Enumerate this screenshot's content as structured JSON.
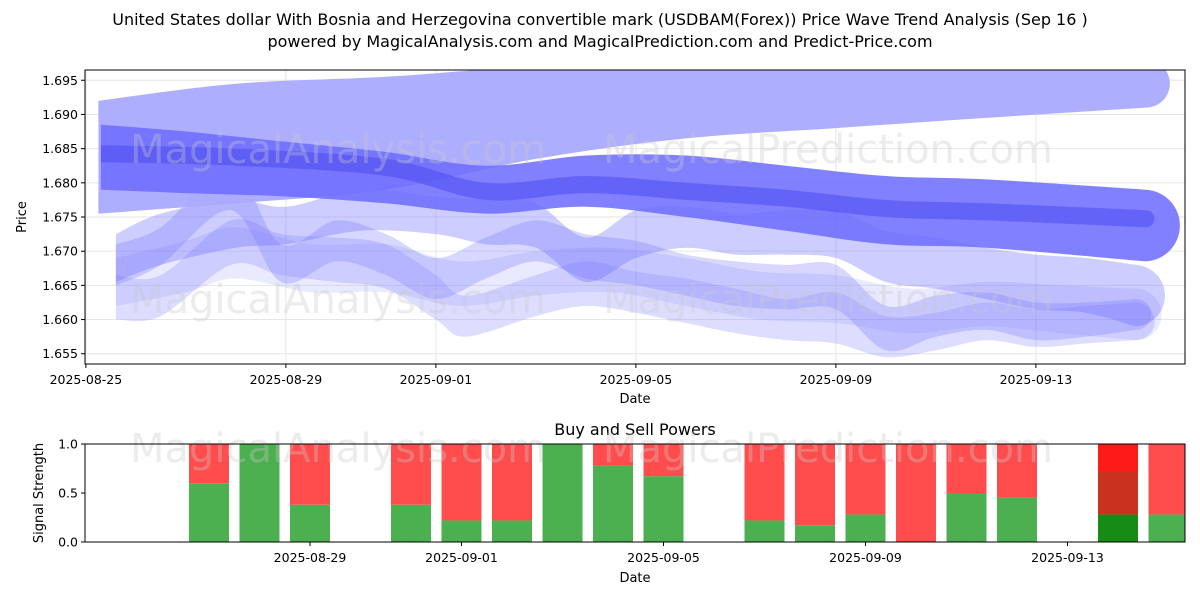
{
  "title_line1": "United States dollar With Bosnia and Herzegovina convertible mark (USDBAM(Forex)) Price Wave Trend Analysis (Sep 16 )",
  "title_line2": "powered by MagicalAnalysis.com and MagicalPrediction.com and Predict-Price.com",
  "watermarks": [
    "MagicalAnalysis.com",
    "MagicalPrediction.com"
  ],
  "chart_data": [
    {
      "type": "area",
      "title": "",
      "xlabel": "Date",
      "ylabel": "Price",
      "x_start": "2025-08-25",
      "x_end": "2025-09-16",
      "xlim_days": [
        0,
        21.4
      ],
      "ylim": [
        1.6535,
        1.6965
      ],
      "xticks": [
        {
          "day": 0,
          "label": "2025-08-25"
        },
        {
          "day": 4,
          "label": "2025-08-29"
        },
        {
          "day": 7,
          "label": "2025-09-01"
        },
        {
          "day": 11,
          "label": "2025-09-05"
        },
        {
          "day": 15,
          "label": "2025-09-09"
        },
        {
          "day": 19,
          "label": "2025-09-13"
        }
      ],
      "yticks": [
        1.655,
        1.66,
        1.665,
        1.67,
        1.675,
        1.68,
        1.685,
        1.69,
        1.695
      ],
      "grid": true,
      "series": [
        {
          "name": "upper wave",
          "color": "#aaaaff",
          "opacity": 0.95,
          "x": [
            0.25,
            3,
            6,
            9,
            12,
            15,
            18,
            21.2
          ],
          "upper": [
            1.692,
            1.6945,
            1.6955,
            1.697,
            1.697,
            1.6975,
            1.698,
            1.698
          ],
          "lower": [
            1.6755,
            1.677,
            1.679,
            1.6835,
            1.6865,
            1.688,
            1.6895,
            1.691
          ]
        },
        {
          "name": "main wave",
          "color": "#6b6bff",
          "opacity": 0.85,
          "x": [
            0.3,
            2,
            4,
            6,
            8,
            10,
            12,
            14,
            16,
            18,
            21.2
          ],
          "upper": [
            1.6885,
            1.6875,
            1.686,
            1.6845,
            1.6825,
            1.684,
            1.684,
            1.6825,
            1.681,
            1.6805,
            1.679
          ],
          "lower": [
            1.679,
            1.6785,
            1.678,
            1.677,
            1.6755,
            1.6765,
            1.675,
            1.673,
            1.671,
            1.6705,
            1.6685
          ]
        },
        {
          "name": "center line",
          "color": "#4b4bf0",
          "opacity": 0.55,
          "x": [
            0.3,
            3,
            6,
            8,
            10,
            12,
            14,
            16,
            18,
            21.2
          ],
          "upper": [
            1.6855,
            1.685,
            1.6835,
            1.68,
            1.681,
            1.68,
            1.679,
            1.6775,
            1.677,
            1.676
          ],
          "lower": [
            1.683,
            1.6825,
            1.681,
            1.6775,
            1.6785,
            1.6775,
            1.6765,
            1.675,
            1.6745,
            1.6735
          ]
        },
        {
          "name": "wave 3",
          "color": "#7070ff",
          "opacity": 0.35,
          "x": [
            0.6,
            1.5,
            3,
            4,
            5.5,
            7,
            8,
            9,
            10,
            11,
            12,
            13,
            14,
            15,
            16,
            17,
            18,
            19,
            20,
            21
          ],
          "upper": [
            1.6725,
            1.6755,
            1.6775,
            1.6765,
            1.679,
            1.678,
            1.6775,
            1.677,
            1.672,
            1.676,
            1.6765,
            1.6755,
            1.676,
            1.676,
            1.673,
            1.672,
            1.6705,
            1.6695,
            1.669,
            1.668
          ],
          "lower": [
            1.6655,
            1.668,
            1.6705,
            1.671,
            1.673,
            1.6725,
            1.671,
            1.6705,
            1.6655,
            1.669,
            1.6705,
            1.6695,
            1.6695,
            1.669,
            1.6655,
            1.6645,
            1.663,
            1.6615,
            1.661,
            1.659
          ]
        },
        {
          "name": "wave 4",
          "color": "#7a7aff",
          "opacity": 0.3,
          "x": [
            0.6,
            1.5,
            2.9,
            3.9,
            5,
            6,
            7,
            8,
            9,
            10,
            11,
            12,
            13,
            14,
            15,
            16,
            17,
            18,
            19,
            20,
            21
          ],
          "upper": [
            1.671,
            1.6735,
            1.682,
            1.671,
            1.6745,
            1.6725,
            1.669,
            1.672,
            1.6745,
            1.6725,
            1.6715,
            1.6695,
            1.6685,
            1.668,
            1.668,
            1.662,
            1.6635,
            1.664,
            1.6625,
            1.6625,
            1.663
          ],
          "lower": [
            1.665,
            1.668,
            1.676,
            1.6655,
            1.6685,
            1.6665,
            1.663,
            1.666,
            1.6685,
            1.666,
            1.665,
            1.6635,
            1.662,
            1.6615,
            1.6615,
            1.6555,
            1.6575,
            1.6585,
            1.657,
            1.6575,
            1.6585
          ]
        },
        {
          "name": "wave 5",
          "color": "#8585ff",
          "opacity": 0.28,
          "x": [
            0.6,
            1.5,
            2.9,
            3.9,
            5,
            6,
            7,
            7.6,
            9,
            10,
            11,
            12,
            13,
            14,
            15,
            16,
            17,
            18,
            19,
            20,
            21
          ],
          "upper": [
            1.6665,
            1.6665,
            1.6745,
            1.6725,
            1.672,
            1.671,
            1.6665,
            1.6635,
            1.6665,
            1.6685,
            1.667,
            1.666,
            1.6645,
            1.663,
            1.664,
            1.6605,
            1.661,
            1.6625,
            1.6615,
            1.662,
            1.6625
          ],
          "lower": [
            1.66,
            1.6605,
            1.668,
            1.6665,
            1.6655,
            1.6645,
            1.66,
            1.6575,
            1.6605,
            1.662,
            1.661,
            1.6595,
            1.658,
            1.657,
            1.6565,
            1.6545,
            1.6555,
            1.657,
            1.656,
            1.6565,
            1.657
          ]
        },
        {
          "name": "wave 6",
          "color": "#9a9aff",
          "opacity": 0.22,
          "x": [
            0.6,
            2,
            3,
            4.5,
            6,
            7.5,
            9,
            10.5,
            12,
            13.5,
            15,
            16.5,
            18,
            19.5,
            21
          ],
          "upper": [
            1.669,
            1.6715,
            1.6735,
            1.671,
            1.671,
            1.6685,
            1.67,
            1.6705,
            1.669,
            1.667,
            1.6665,
            1.6645,
            1.6655,
            1.665,
            1.6645
          ],
          "lower": [
            1.662,
            1.664,
            1.666,
            1.664,
            1.664,
            1.662,
            1.6635,
            1.664,
            1.662,
            1.66,
            1.6595,
            1.658,
            1.659,
            1.658,
            1.657
          ]
        }
      ]
    },
    {
      "type": "bar",
      "title": "Buy and Sell Powers",
      "xlabel": "Date",
      "ylabel": "Signal Strength",
      "ylim": [
        0,
        1.0
      ],
      "yticks": [
        0.0,
        0.5,
        1.0
      ],
      "xticks": [
        {
          "day": 4,
          "label": "2025-08-29"
        },
        {
          "day": 7,
          "label": "2025-09-01"
        },
        {
          "day": 11,
          "label": "2025-09-05"
        },
        {
          "day": 15,
          "label": "2025-09-09"
        },
        {
          "day": 19,
          "label": "2025-09-13"
        }
      ],
      "series_names": [
        "Buy",
        "Sell"
      ],
      "buy_color": "#4caf50",
      "sell_color": "#ff4d4d",
      "bars": [
        {
          "day": 2,
          "buy": 0.6
        },
        {
          "day": 3,
          "buy": 1.0
        },
        {
          "day": 4,
          "buy": 0.38
        },
        {
          "day": 6,
          "buy": 0.38
        },
        {
          "day": 7,
          "buy": 0.22
        },
        {
          "day": 8,
          "buy": 0.22
        },
        {
          "day": 9,
          "buy": 1.0
        },
        {
          "day": 10,
          "buy": 0.78
        },
        {
          "day": 11,
          "buy": 0.67
        },
        {
          "day": 13,
          "buy": 0.22
        },
        {
          "day": 14,
          "buy": 0.17
        },
        {
          "day": 15,
          "buy": 0.28
        },
        {
          "day": 16,
          "buy": 0.0
        },
        {
          "day": 17,
          "buy": 0.5
        },
        {
          "day": 18,
          "buy": 0.45
        },
        {
          "day": 20,
          "buy": 0.28,
          "highlight": true
        },
        {
          "day": 21,
          "buy": 0.28
        }
      ]
    }
  ]
}
